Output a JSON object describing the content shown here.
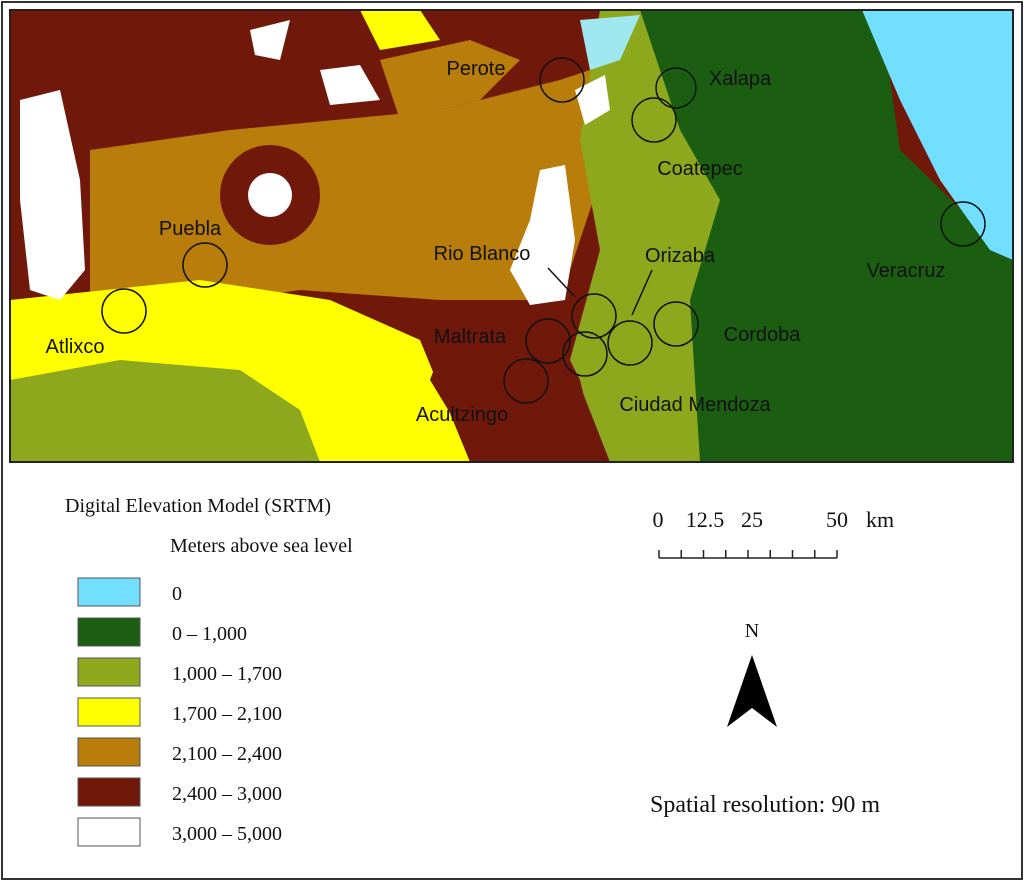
{
  "map": {
    "cities": [
      "Perote",
      "Xalapa",
      "Coatepec",
      "Veracruz",
      "Puebla",
      "Rio Blanco",
      "Orizaba",
      "Atlixco",
      "Maltrata",
      "Cordoba",
      "Acultzingo",
      "Ciudad Mendoza"
    ]
  },
  "legend": {
    "title": "Digital Elevation Model (SRTM)",
    "subtitle": "Meters above sea level",
    "items": [
      {
        "label": "0",
        "color": "#73dfff"
      },
      {
        "label": "0 – 1,000",
        "color": "#1b5e12"
      },
      {
        "label": "1,000 – 1,700",
        "color": "#8ea81e"
      },
      {
        "label": "1,700 – 2,100",
        "color": "#ffff00"
      },
      {
        "label": "2,100 – 2,400",
        "color": "#b87d0a"
      },
      {
        "label": "2,400 – 3,000",
        "color": "#70190a"
      },
      {
        "label": "3,000 – 5,000",
        "color": "#ffffff"
      }
    ]
  },
  "scale_bar": {
    "ticks": [
      "0",
      "12.5",
      "25",
      "50"
    ],
    "unit": "km"
  },
  "north_arrow": {
    "label": "N"
  },
  "resolution": "Spatial resolution: 90 m"
}
